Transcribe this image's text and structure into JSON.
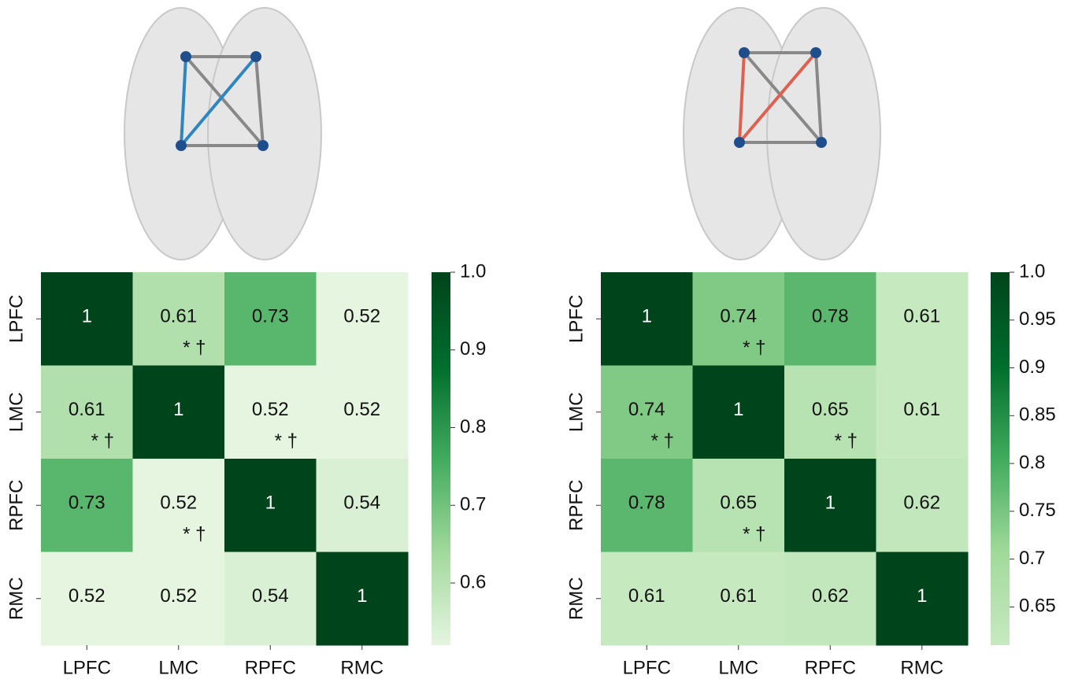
{
  "chart_data": [
    {
      "type": "heatmap",
      "x_categories": [
        "LPFC",
        "LMC",
        "RPFC",
        "RMC"
      ],
      "y_categories": [
        "LPFC",
        "LMC",
        "RPFC",
        "RMC"
      ],
      "values": [
        [
          1,
          0.61,
          0.73,
          0.52
        ],
        [
          0.61,
          1,
          0.52,
          0.52
        ],
        [
          0.73,
          0.52,
          1,
          0.54
        ],
        [
          0.52,
          0.52,
          0.54,
          1
        ]
      ],
      "cell_notes": [
        [
          null,
          "* †",
          null,
          null
        ],
        [
          "* †",
          null,
          "* †",
          null
        ],
        [
          null,
          "* †",
          null,
          null
        ],
        [
          null,
          null,
          null,
          null
        ]
      ],
      "clim": [
        0.52,
        1
      ],
      "cticks": [
        0.6,
        0.7,
        0.8,
        0.9,
        {
          "value": 1,
          "label": "1.0"
        }
      ],
      "colormap": [
        "#e5f5e0",
        "#a1d99b",
        "#41ab5d",
        "#006d2c",
        "#00441b"
      ]
    },
    {
      "type": "heatmap",
      "x_categories": [
        "LPFC",
        "LMC",
        "RPFC",
        "RMC"
      ],
      "y_categories": [
        "LPFC",
        "LMC",
        "RPFC",
        "RMC"
      ],
      "values": [
        [
          1,
          0.74,
          0.78,
          0.61
        ],
        [
          0.74,
          1,
          0.65,
          0.61
        ],
        [
          0.78,
          0.65,
          1,
          0.62
        ],
        [
          0.61,
          0.61,
          0.62,
          1
        ]
      ],
      "cell_notes": [
        [
          null,
          "* †",
          null,
          null
        ],
        [
          "* †",
          null,
          "* †",
          null
        ],
        [
          null,
          "* †",
          null,
          null
        ],
        [
          null,
          null,
          null,
          null
        ]
      ],
      "clim": [
        0.61,
        1
      ],
      "cticks": [
        0.65,
        0.7,
        0.75,
        0.8,
        0.85,
        0.9,
        0.95,
        {
          "value": 1,
          "label": "1.0"
        }
      ],
      "colormap": [
        "#c7e9c0",
        "#a1d99b",
        "#41ab5d",
        "#006d2c",
        "#00441b"
      ]
    }
  ]
}
